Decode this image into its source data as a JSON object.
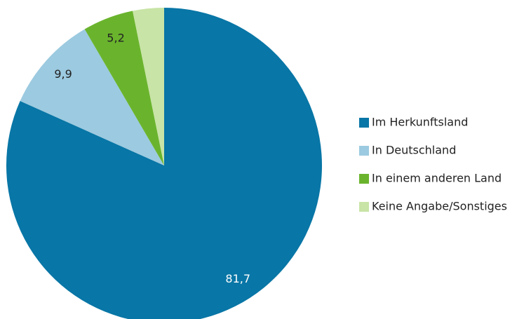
{
  "chart_data": {
    "type": "pie",
    "categories": [
      "Im Herkunftsland",
      "In Deutschland",
      "In einem anderen  Land",
      "Keine Angabe/Sonstiges"
    ],
    "values": [
      81.7,
      9.9,
      5.2,
      3.2
    ],
    "value_labels": [
      "81,7",
      "9,9",
      "5,2",
      null
    ],
    "colors": [
      "#0876a6",
      "#9ccae0",
      "#6ab42d",
      "#c8e4a6"
    ],
    "legend": "right"
  }
}
